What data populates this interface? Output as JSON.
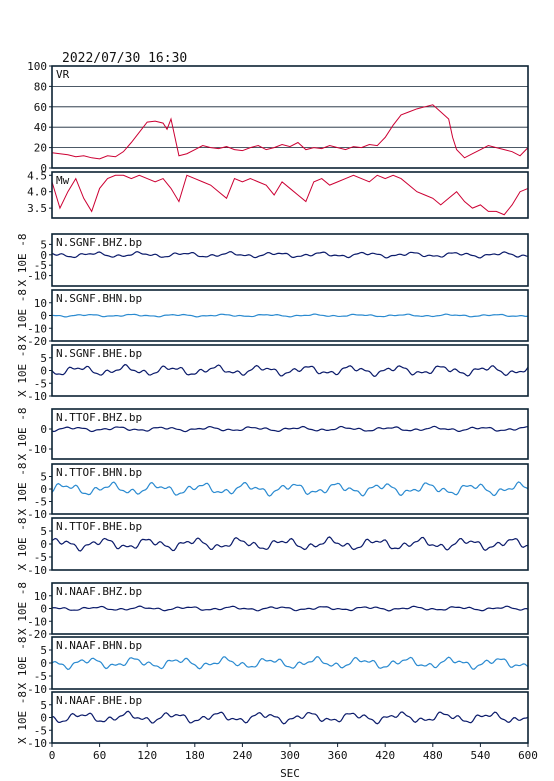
{
  "header": {
    "datetime": "2022/07/30 16:30"
  },
  "colors": {
    "frame": "#003344",
    "trace_red": "#cc0033",
    "trace_dark": "#0a1a6a",
    "trace_light": "#2a8ad0"
  },
  "x_axis": {
    "label": "SEC",
    "ticks": [
      "0",
      "60",
      "120",
      "180",
      "240",
      "300",
      "360",
      "420",
      "480",
      "540",
      "600"
    ],
    "xlim": [
      0,
      600
    ]
  },
  "chart_data": [
    {
      "type": "line",
      "label": "VR",
      "ylim": [
        0,
        100
      ],
      "grid": true,
      "yticks": [
        "100",
        "80",
        "60",
        "40",
        "20",
        "0"
      ],
      "series": [
        {
          "color": "trace_red",
          "x": [
            0,
            10,
            20,
            30,
            40,
            50,
            60,
            70,
            80,
            90,
            100,
            110,
            120,
            130,
            140,
            145,
            150,
            160,
            170,
            180,
            190,
            200,
            210,
            220,
            230,
            240,
            250,
            260,
            270,
            280,
            290,
            300,
            310,
            320,
            330,
            340,
            350,
            360,
            370,
            380,
            390,
            400,
            410,
            420,
            430,
            440,
            450,
            460,
            470,
            480,
            490,
            500,
            505,
            510,
            520,
            530,
            540,
            550,
            560,
            570,
            580,
            590,
            600
          ],
          "y": [
            15,
            14,
            13,
            11,
            12,
            10,
            9,
            12,
            11,
            16,
            25,
            35,
            45,
            46,
            44,
            38,
            48,
            12,
            14,
            18,
            22,
            20,
            19,
            21,
            18,
            17,
            20,
            22,
            18,
            20,
            23,
            21,
            25,
            18,
            20,
            19,
            22,
            20,
            18,
            21,
            20,
            23,
            22,
            30,
            42,
            52,
            55,
            58,
            60,
            62,
            55,
            48,
            30,
            18,
            10,
            14,
            18,
            22,
            20,
            18,
            16,
            12,
            20
          ]
        }
      ]
    },
    {
      "type": "line",
      "label": "Mw",
      "ylim": [
        3.2,
        4.6
      ],
      "grid": false,
      "yticks": [
        "4.5",
        "4.0",
        "3.5"
      ],
      "series": [
        {
          "color": "trace_red",
          "x": [
            0,
            10,
            20,
            30,
            40,
            50,
            60,
            70,
            80,
            90,
            100,
            110,
            120,
            130,
            140,
            150,
            160,
            170,
            180,
            190,
            200,
            210,
            220,
            230,
            240,
            250,
            260,
            270,
            280,
            290,
            300,
            310,
            320,
            330,
            340,
            350,
            360,
            370,
            380,
            390,
            400,
            410,
            420,
            430,
            440,
            450,
            460,
            470,
            480,
            490,
            500,
            510,
            520,
            530,
            540,
            550,
            560,
            570,
            580,
            590,
            600
          ],
          "y": [
            4.3,
            3.5,
            4.0,
            4.4,
            3.8,
            3.4,
            4.1,
            4.4,
            4.5,
            4.5,
            4.4,
            4.5,
            4.4,
            4.3,
            4.4,
            4.1,
            3.7,
            4.5,
            4.4,
            4.3,
            4.2,
            4.0,
            3.8,
            4.4,
            4.3,
            4.4,
            4.3,
            4.2,
            3.9,
            4.3,
            4.1,
            3.9,
            3.7,
            4.3,
            4.4,
            4.2,
            4.3,
            4.4,
            4.5,
            4.4,
            4.3,
            4.5,
            4.4,
            4.5,
            4.4,
            4.2,
            4.0,
            3.9,
            3.8,
            3.6,
            3.8,
            4.0,
            3.7,
            3.5,
            3.6,
            3.4,
            3.4,
            3.3,
            3.6,
            4.0,
            4.1
          ]
        }
      ]
    },
    {
      "type": "line",
      "label": "N.SGNF.BHZ.bp",
      "unit": "X 10E -8",
      "ylim": [
        -15,
        10
      ],
      "yticks": [
        "5",
        "0",
        "-5",
        "-10"
      ],
      "color": "trace_dark",
      "wiggle": 0.8
    },
    {
      "type": "line",
      "label": "N.SGNF.BHN.bp",
      "unit": "X 10E -8",
      "ylim": [
        -20,
        20
      ],
      "yticks": [
        "10",
        "0",
        "-10",
        "-20"
      ],
      "color": "trace_light",
      "wiggle": 0.6
    },
    {
      "type": "line",
      "label": "N.SGNF.BHE.bp",
      "unit": "X 10E -8",
      "ylim": [
        -10,
        10
      ],
      "yticks": [
        "5",
        "0",
        "-5",
        "-10"
      ],
      "color": "trace_dark",
      "wiggle": 1.2
    },
    {
      "type": "line",
      "label": "N.TTOF.BHZ.bp",
      "unit": "X 10E -8",
      "ylim": [
        -15,
        10
      ],
      "yticks": [
        "0",
        "-10"
      ],
      "color": "trace_dark",
      "wiggle": 0.7
    },
    {
      "type": "line",
      "label": "N.TTOF.BHN.bp",
      "unit": "X 10E -8",
      "ylim": [
        -10,
        10
      ],
      "yticks": [
        "5",
        "0",
        "-5",
        "-10"
      ],
      "color": "trace_light",
      "wiggle": 1.5
    },
    {
      "type": "line",
      "label": "N.TTOF.BHE.bp",
      "unit": "X 10E -8",
      "ylim": [
        -10,
        10
      ],
      "yticks": [
        "5",
        "0",
        "-5",
        "-10"
      ],
      "color": "trace_dark",
      "wiggle": 1.4
    },
    {
      "type": "line",
      "label": "N.NAAF.BHZ.bp",
      "unit": "X 10E -8",
      "ylim": [
        -20,
        20
      ],
      "yticks": [
        "10",
        "0",
        "-10",
        "-20"
      ],
      "color": "trace_dark",
      "wiggle": 1.0
    },
    {
      "type": "line",
      "label": "N.NAAF.BHN.bp",
      "unit": "X 10E -8",
      "ylim": [
        -10,
        10
      ],
      "yticks": [
        "5",
        "0",
        "-5",
        "-10"
      ],
      "color": "trace_light",
      "wiggle": 1.3
    },
    {
      "type": "line",
      "label": "N.NAAF.BHE.bp",
      "unit": "X 10E -8",
      "ylim": [
        -10,
        10
      ],
      "yticks": [
        "5",
        "0",
        "-5",
        "-10"
      ],
      "color": "trace_dark",
      "wiggle": 1.3
    }
  ]
}
